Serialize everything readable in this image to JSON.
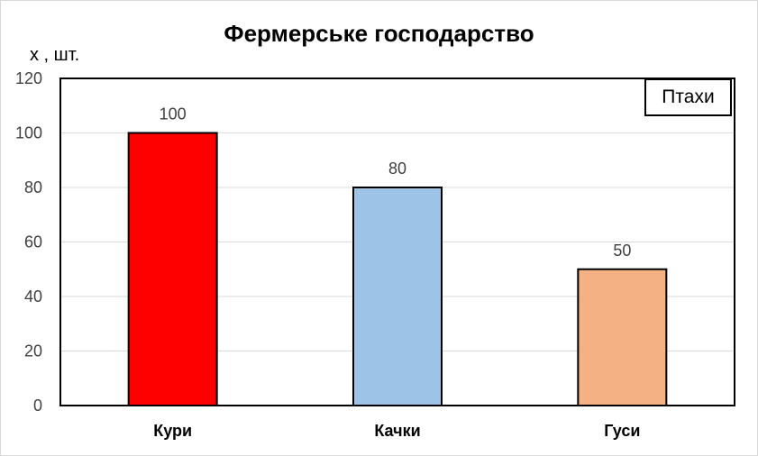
{
  "chart_data": {
    "type": "bar",
    "title": "Фермерське господарство",
    "ylabel": "х , шт.",
    "xlabel": "",
    "categories": [
      "Кури",
      "Качки",
      "Гуси"
    ],
    "values": [
      100,
      80,
      50
    ],
    "data_labels": [
      "100",
      "80",
      "50"
    ],
    "colors": [
      "#ff0000",
      "#9dc3e6",
      "#f4b183"
    ],
    "ylim": [
      0,
      120
    ],
    "yticks": [
      0,
      20,
      40,
      60,
      80,
      100,
      120
    ],
    "ytick_labels": [
      "0",
      "20",
      "40",
      "60",
      "80",
      "100",
      "120"
    ],
    "grid": true,
    "legend": {
      "text": "Птахи",
      "placement": "top-right"
    }
  }
}
